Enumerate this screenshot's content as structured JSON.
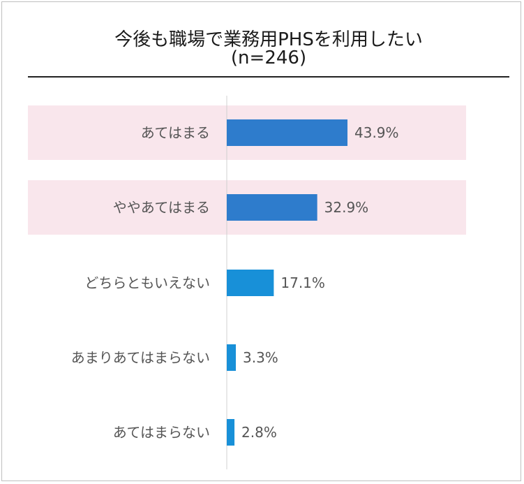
{
  "chart_data": {
    "type": "bar",
    "orientation": "horizontal",
    "title": "今後も職場で業務用PHSを利用したい",
    "subtitle": "(n=246)",
    "categories": [
      "あてはまる",
      "ややあてはまる",
      "どちらともいえない",
      "あまりあてはまらない",
      "あてはまらない"
    ],
    "values": [
      43.9,
      32.9,
      17.1,
      3.3,
      2.8
    ],
    "value_labels": [
      "43.9%",
      "32.9%",
      "17.1%",
      "3.3%",
      "2.8%"
    ],
    "highlighted": [
      true,
      true,
      false,
      false,
      false
    ],
    "bar_colors": [
      "#2e7ccc",
      "#2e7ccc",
      "#1890d8",
      "#1890d8",
      "#1890d8"
    ],
    "highlight_color": "#f9e6ec",
    "xlim": [
      0,
      100
    ],
    "grid": false,
    "legend": "none"
  }
}
